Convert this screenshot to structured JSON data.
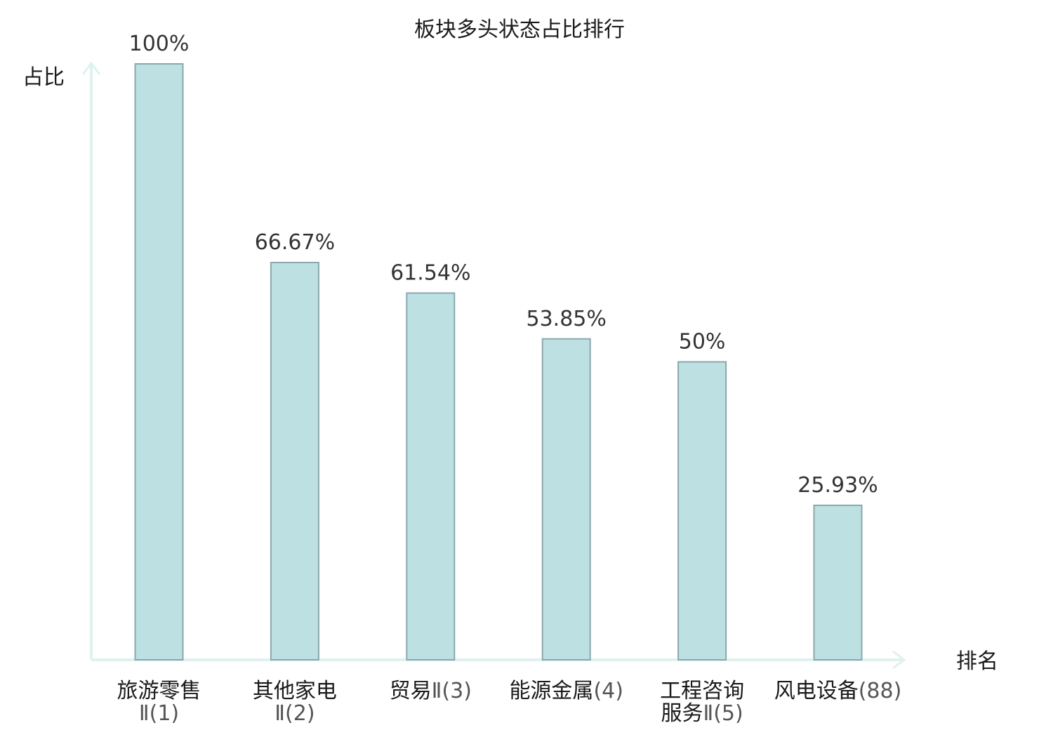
{
  "chart_data": {
    "type": "bar",
    "title": "板块多头状态占比排行",
    "ylabel": "占比",
    "xlabel": "排名",
    "ylim": [
      0,
      100
    ],
    "grid": false,
    "categories": [
      {
        "lines": [
          {
            "name": "旅游零售",
            "rank": ""
          },
          {
            "name": "",
            "rank": "Ⅱ(1)"
          }
        ],
        "highlight": false
      },
      {
        "lines": [
          {
            "name": "其他家电",
            "rank": ""
          },
          {
            "name": "",
            "rank": "Ⅱ(2)"
          }
        ],
        "highlight": false
      },
      {
        "lines": [
          {
            "name": "贸易",
            "rank": "Ⅱ(3)"
          }
        ],
        "highlight": false
      },
      {
        "lines": [
          {
            "name": "能源金属",
            "rank": "(4)"
          }
        ],
        "highlight": false
      },
      {
        "lines": [
          {
            "name": "工程咨询",
            "rank": ""
          },
          {
            "name": "服务",
            "rank": "Ⅱ(5)"
          }
        ],
        "highlight": false
      },
      {
        "lines": [
          {
            "name": "风电设备",
            "rank": "(88)"
          }
        ],
        "highlight": true
      }
    ],
    "values": [
      100,
      66.67,
      61.54,
      53.85,
      50,
      25.93
    ],
    "value_labels": [
      "100%",
      "66.67%",
      "61.54%",
      "53.85%",
      "50%",
      "25.93%"
    ]
  },
  "colors": {
    "bar_fill": "#bde0e3",
    "bar_stroke": "#8aa8ad",
    "axis": "#dff2ef",
    "highlight": "#e60012"
  }
}
